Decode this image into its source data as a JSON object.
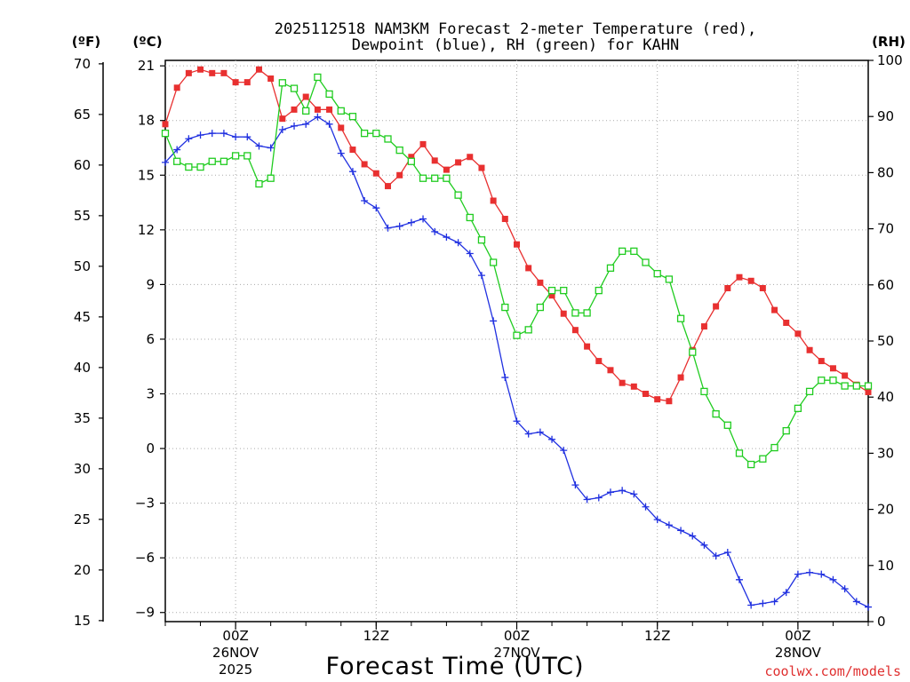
{
  "chart_data": {
    "type": "line",
    "title_line1": "2025112518 NAM3KM Forecast 2-meter Temperature (red),",
    "title_line2": "Dewpoint (blue), RH (green) for KAHN",
    "xlabel": "Forecast Time (UTC)",
    "credit": "coolwx.com/models",
    "credit_color": "#e03030",
    "units": {
      "fahrenheit": "(ºF)",
      "celsius": "(ºC)",
      "rh": "(RH)"
    },
    "hours_range": [
      -6,
      54
    ],
    "celsius_range": [
      -9.5,
      21.3
    ],
    "rh_range": [
      0,
      100
    ],
    "fahrenheit_ticks": [
      "70",
      "65",
      "60",
      "55",
      "50",
      "45",
      "40",
      "35",
      "30",
      "25",
      "20",
      "15"
    ],
    "fahrenheit_values": [
      70,
      65,
      60,
      55,
      50,
      45,
      40,
      35,
      30,
      25,
      20,
      15
    ],
    "celsius_ticks": [
      "21",
      "18",
      "15",
      "12",
      "9",
      "6",
      "3",
      "0",
      "−3",
      "−6",
      "−9"
    ],
    "celsius_values": [
      21,
      18,
      15,
      12,
      9,
      6,
      3,
      0,
      -3,
      -6,
      -9
    ],
    "rh_ticks": [
      "100",
      "90",
      "80",
      "70",
      "60",
      "50",
      "40",
      "30",
      "20",
      "10",
      "0"
    ],
    "rh_values": [
      100,
      90,
      80,
      70,
      60,
      50,
      40,
      30,
      20,
      10,
      0
    ],
    "x_ticks": [
      {
        "hour": 0,
        "line1": "00Z",
        "line2": "26NOV",
        "line3": "2025"
      },
      {
        "hour": 12,
        "line1": "12Z",
        "line2": "",
        "line3": ""
      },
      {
        "hour": 24,
        "line1": "00Z",
        "line2": "27NOV",
        "line3": ""
      },
      {
        "hour": 36,
        "line1": "12Z",
        "line2": "",
        "line3": ""
      },
      {
        "hour": 48,
        "line1": "00Z",
        "line2": "28NOV",
        "line3": ""
      }
    ],
    "x_hours": [
      -6,
      -5,
      -4,
      -3,
      -2,
      -1,
      0,
      1,
      2,
      3,
      4,
      5,
      6,
      7,
      8,
      9,
      10,
      11,
      12,
      13,
      14,
      15,
      16,
      17,
      18,
      19,
      20,
      21,
      22,
      23,
      24,
      25,
      26,
      27,
      28,
      29,
      30,
      31,
      32,
      33,
      34,
      35,
      36,
      37,
      38,
      39,
      40,
      41,
      42,
      43,
      44,
      45,
      46,
      47,
      48,
      49,
      50,
      51,
      52,
      53,
      54
    ],
    "series": [
      {
        "name": "Temperature",
        "color": "#e83030",
        "marker": "filled-square",
        "values": [
          17.8,
          19.8,
          20.6,
          20.8,
          20.6,
          20.6,
          20.1,
          20.1,
          20.8,
          20.3,
          18.1,
          18.6,
          19.3,
          18.6,
          18.6,
          17.6,
          16.4,
          15.6,
          15.1,
          14.4,
          15.0,
          16.0,
          16.7,
          15.8,
          15.3,
          15.7,
          16.0,
          15.4,
          13.6,
          12.6,
          11.2,
          9.9,
          9.1,
          8.4,
          7.4,
          6.5,
          5.6,
          4.8,
          4.3,
          3.6,
          3.4,
          3.0,
          2.7,
          2.6,
          3.9,
          5.4,
          6.7,
          7.8,
          8.8,
          9.4,
          9.2,
          8.8,
          7.6,
          6.9,
          6.3,
          5.4,
          4.8,
          4.4,
          4.0,
          3.5,
          3.1
        ]
      },
      {
        "name": "Dewpoint",
        "color": "#2030e0",
        "marker": "plus",
        "values": [
          15.7,
          16.4,
          17.0,
          17.2,
          17.3,
          17.3,
          17.1,
          17.1,
          16.6,
          16.5,
          17.5,
          17.7,
          17.8,
          18.2,
          17.8,
          16.2,
          15.2,
          13.6,
          13.2,
          12.1,
          12.2,
          12.4,
          12.6,
          11.9,
          11.6,
          11.3,
          10.7,
          9.5,
          7.0,
          3.9,
          1.5,
          0.8,
          0.9,
          0.5,
          -0.1,
          -2.0,
          -2.8,
          -2.7,
          -2.4,
          -2.3,
          -2.5,
          -3.2,
          -3.9,
          -4.2,
          -4.5,
          -4.8,
          -5.3,
          -5.9,
          -5.7,
          -7.2,
          -8.6,
          -8.5,
          -8.4,
          -7.9,
          -6.9,
          -6.8,
          -6.9,
          -7.2,
          -7.7,
          -8.4,
          -8.7
        ]
      },
      {
        "name": "RH",
        "color": "#20cc20",
        "marker": "open-square",
        "values": [
          87,
          82,
          81,
          81,
          82,
          82,
          83,
          83,
          78,
          79,
          96,
          95,
          91,
          97,
          94,
          91,
          90,
          87,
          87,
          86,
          84,
          82,
          79,
          79,
          79,
          76,
          72,
          68,
          64,
          56,
          51,
          52,
          56,
          59,
          59,
          55,
          55,
          59,
          63,
          66,
          66,
          64,
          62,
          61,
          54,
          48,
          41,
          37,
          35,
          30,
          28,
          29,
          31,
          34,
          38,
          41,
          43,
          43,
          42,
          42,
          42
        ]
      }
    ]
  }
}
